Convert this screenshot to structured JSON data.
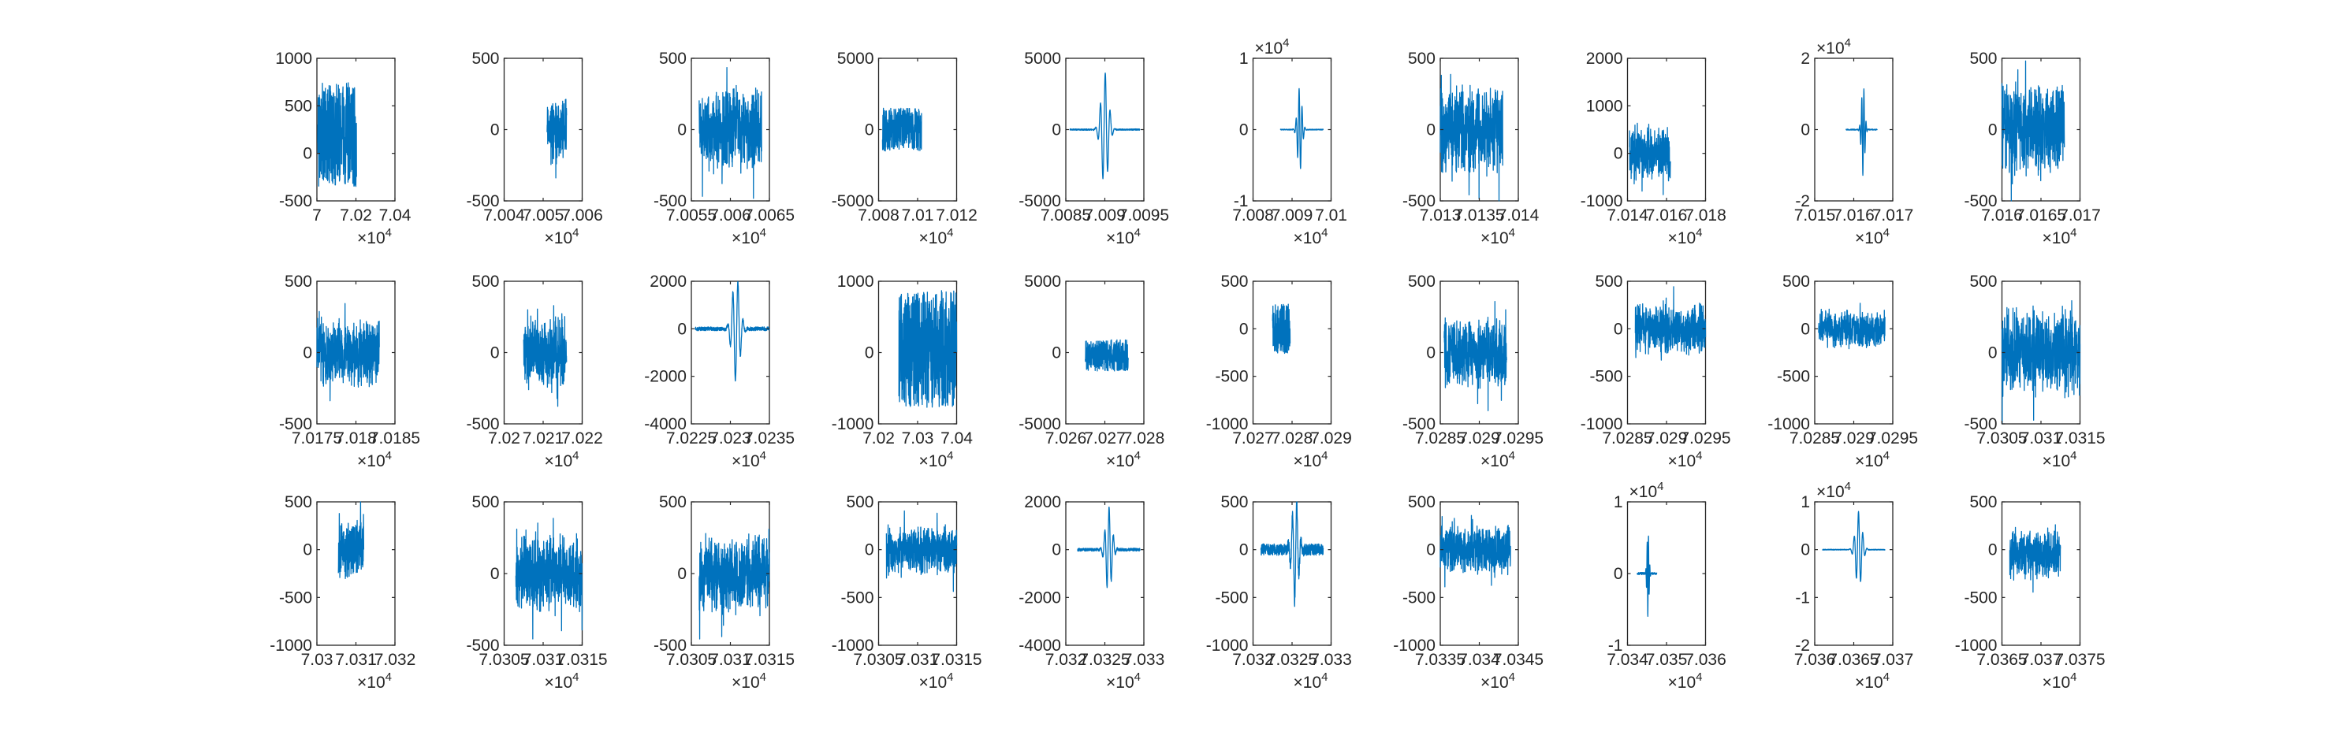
{
  "figure": {
    "series_color": "#0072BD",
    "axis_color": "#262626",
    "background": "#ffffff"
  },
  "chart_data": [
    {
      "type": "line",
      "grid": false,
      "xlim": [
        70000,
        70400
      ],
      "ylim": [
        -500,
        1000
      ],
      "xticks": [
        "7",
        "7.02",
        "7.04"
      ],
      "yticks": [
        "-500",
        "0",
        "500",
        "1000"
      ],
      "x_exponent": "4",
      "y_exponent": "",
      "signal": {
        "x_start": 70004,
        "x_end": 70203,
        "center": 200,
        "noise": 550,
        "burst": 0,
        "burst_pos": 0.5,
        "style": "block"
      }
    },
    {
      "type": "line",
      "grid": false,
      "xlim": [
        70040,
        70060
      ],
      "ylim": [
        -500,
        500
      ],
      "xticks": [
        "7.004",
        "7.005",
        "7.006"
      ],
      "yticks": [
        "-500",
        "0",
        "500"
      ],
      "x_exponent": "4",
      "y_exponent": "",
      "signal": {
        "x_start": 70051,
        "x_end": 70056,
        "center": 0,
        "noise": 160,
        "burst": 0,
        "burst_pos": 0.5,
        "style": "noise"
      }
    },
    {
      "type": "line",
      "grid": false,
      "xlim": [
        70055,
        70065
      ],
      "ylim": [
        -500,
        500
      ],
      "xticks": [
        "7.0055",
        "7.006",
        "7.0065"
      ],
      "yticks": [
        "-500",
        "0",
        "500"
      ],
      "x_exponent": "4",
      "y_exponent": "",
      "signal": {
        "x_start": 70056,
        "x_end": 70064,
        "center": 0,
        "noise": 200,
        "burst": 0,
        "burst_pos": 0.5,
        "style": "noise"
      }
    },
    {
      "type": "line",
      "grid": false,
      "xlim": [
        70080,
        70120
      ],
      "ylim": [
        -5000,
        5000
      ],
      "xticks": [
        "7.008",
        "7.01",
        "7.012"
      ],
      "yticks": [
        "-5000",
        "0",
        "5000"
      ],
      "x_exponent": "4",
      "y_exponent": "",
      "signal": {
        "x_start": 70082,
        "x_end": 70102,
        "center": 0,
        "noise": 1500,
        "burst": 0,
        "burst_pos": 0.5,
        "style": "block"
      }
    },
    {
      "type": "line",
      "grid": false,
      "xlim": [
        70085,
        70095
      ],
      "ylim": [
        -5000,
        5000
      ],
      "xticks": [
        "7.0085",
        "7.009",
        "7.0095"
      ],
      "yticks": [
        "-5000",
        "0",
        "5000"
      ],
      "x_exponent": "4",
      "y_exponent": "",
      "signal": {
        "x_start": 70085.5,
        "x_end": 70094.5,
        "center": 0,
        "noise": 50,
        "burst": 4000,
        "burst_pos": 0.5,
        "style": "wave"
      }
    },
    {
      "type": "line",
      "grid": false,
      "xlim": [
        70080,
        70100
      ],
      "ylim": [
        -10000,
        10000
      ],
      "xticks": [
        "7.008",
        "7.009",
        "7.01"
      ],
      "yticks": [
        "-1",
        "0",
        "1"
      ],
      "x_exponent": "4",
      "y_exponent": "4",
      "signal": {
        "x_start": 70087,
        "x_end": 70098,
        "center": 0,
        "noise": 60,
        "burst": 6000,
        "burst_pos": 0.45,
        "style": "wave"
      }
    },
    {
      "type": "line",
      "grid": false,
      "xlim": [
        70130,
        70140
      ],
      "ylim": [
        -500,
        500
      ],
      "xticks": [
        "7.013",
        "7.0135",
        "7.014"
      ],
      "yticks": [
        "-500",
        "0",
        "500"
      ],
      "x_exponent": "4",
      "y_exponent": "",
      "signal": {
        "x_start": 70130,
        "x_end": 70138,
        "center": 0,
        "noise": 200,
        "burst": 0,
        "burst_pos": 0.5,
        "style": "noise"
      }
    },
    {
      "type": "line",
      "grid": false,
      "xlim": [
        70140,
        70180
      ],
      "ylim": [
        -1000,
        2000
      ],
      "xticks": [
        "7.014",
        "7.016",
        "7.018"
      ],
      "yticks": [
        "-1000",
        "0",
        "1000",
        "2000"
      ],
      "x_exponent": "4",
      "y_exponent": "",
      "signal": {
        "x_start": 70141,
        "x_end": 70162,
        "center": 0,
        "noise": 400,
        "burst": 0,
        "burst_pos": 0.5,
        "style": "noise"
      }
    },
    {
      "type": "line",
      "grid": false,
      "xlim": [
        70150,
        70170
      ],
      "ylim": [
        -20000,
        20000
      ],
      "xticks": [
        "7.015",
        "7.016",
        "7.017"
      ],
      "yticks": [
        "-2",
        "0",
        "2"
      ],
      "x_exponent": "4",
      "y_exponent": "4",
      "signal": {
        "x_start": 70158,
        "x_end": 70166,
        "center": 0,
        "noise": 150,
        "burst": 13000,
        "burst_pos": 0.55,
        "style": "wave"
      }
    },
    {
      "type": "line",
      "grid": false,
      "xlim": [
        70160,
        70170
      ],
      "ylim": [
        -500,
        500
      ],
      "xticks": [
        "7.016",
        "7.0165",
        "7.017"
      ],
      "yticks": [
        "-500",
        "0",
        "500"
      ],
      "x_exponent": "4",
      "y_exponent": "",
      "signal": {
        "x_start": 70160,
        "x_end": 70168,
        "center": 0,
        "noise": 230,
        "burst": 0,
        "burst_pos": 0.5,
        "style": "noise"
      }
    },
    {
      "type": "line",
      "grid": false,
      "xlim": [
        70175,
        70185
      ],
      "ylim": [
        -500,
        500
      ],
      "xticks": [
        "7.0175",
        "7.018",
        "7.0185"
      ],
      "yticks": [
        "-500",
        "0",
        "500"
      ],
      "x_exponent": "4",
      "y_exponent": "",
      "signal": {
        "x_start": 70175,
        "x_end": 70183,
        "center": 0,
        "noise": 160,
        "burst": 0,
        "burst_pos": 0.5,
        "style": "noise"
      }
    },
    {
      "type": "line",
      "grid": false,
      "xlim": [
        70200,
        70220
      ],
      "ylim": [
        -500,
        500
      ],
      "xticks": [
        "7.02",
        "7.021",
        "7.022"
      ],
      "yticks": [
        "-500",
        "0",
        "500"
      ],
      "x_exponent": "4",
      "y_exponent": "",
      "signal": {
        "x_start": 70205,
        "x_end": 70216,
        "center": 0,
        "noise": 180,
        "burst": 0,
        "burst_pos": 0.5,
        "style": "noise"
      }
    },
    {
      "type": "line",
      "grid": false,
      "xlim": [
        70225,
        70235
      ],
      "ylim": [
        -4000,
        2000
      ],
      "xticks": [
        "7.0225",
        "7.023",
        "7.0235"
      ],
      "yticks": [
        "-4000",
        "-2000",
        "0",
        "2000"
      ],
      "x_exponent": "4",
      "y_exponent": "",
      "signal": {
        "x_start": 70225.5,
        "x_end": 70235,
        "center": 0,
        "noise": 80,
        "burst": 2200,
        "burst_pos": 0.55,
        "style": "wave"
      }
    },
    {
      "type": "line",
      "grid": false,
      "xlim": [
        70200,
        70400
      ],
      "ylim": [
        -1000,
        1000
      ],
      "xticks": [
        "7.02",
        "7.03",
        "7.04"
      ],
      "yticks": [
        "-1000",
        "0",
        "1000"
      ],
      "x_exponent": "4",
      "y_exponent": "",
      "signal": {
        "x_start": 70252,
        "x_end": 70400,
        "center": 50,
        "noise": 820,
        "burst": 0,
        "burst_pos": 0.5,
        "style": "block"
      }
    },
    {
      "type": "line",
      "grid": false,
      "xlim": [
        70260,
        70280
      ],
      "ylim": [
        -5000,
        5000
      ],
      "xticks": [
        "7.026",
        "7.027",
        "7.028"
      ],
      "yticks": [
        "-5000",
        "0",
        "5000"
      ],
      "x_exponent": "4",
      "y_exponent": "",
      "signal": {
        "x_start": 70265,
        "x_end": 70276,
        "center": -200,
        "noise": 1100,
        "burst": 0,
        "burst_pos": 0.5,
        "style": "block"
      }
    },
    {
      "type": "line",
      "grid": false,
      "xlim": [
        70270,
        70290
      ],
      "ylim": [
        -1000,
        500
      ],
      "xticks": [
        "7.027",
        "7.028",
        "7.029"
      ],
      "yticks": [
        "-1000",
        "-500",
        "0",
        "500"
      ],
      "x_exponent": "4",
      "y_exponent": "",
      "signal": {
        "x_start": 70275,
        "x_end": 70279.5,
        "center": 0,
        "noise": 260,
        "burst": 0,
        "burst_pos": 0.5,
        "style": "block"
      }
    },
    {
      "type": "line",
      "grid": false,
      "xlim": [
        70285,
        70295
      ],
      "ylim": [
        -500,
        500
      ],
      "xticks": [
        "7.0285",
        "7.029",
        "7.0295"
      ],
      "yticks": [
        "-500",
        "0",
        "500"
      ],
      "x_exponent": "4",
      "y_exponent": "",
      "signal": {
        "x_start": 70285.5,
        "x_end": 70293.5,
        "center": 0,
        "noise": 170,
        "burst": 0,
        "burst_pos": 0.5,
        "style": "noise"
      }
    },
    {
      "type": "line",
      "grid": false,
      "xlim": [
        70285,
        70295
      ],
      "ylim": [
        -1000,
        500
      ],
      "xticks": [
        "7.0285",
        "7.029",
        "7.0295"
      ],
      "yticks": [
        "-1000",
        "-500",
        "0",
        "500"
      ],
      "x_exponent": "4",
      "y_exponent": "",
      "signal": {
        "x_start": 70286,
        "x_end": 70295,
        "center": 0,
        "noise": 180,
        "burst": 0,
        "burst_pos": 0.5,
        "style": "noise"
      }
    },
    {
      "type": "line",
      "grid": false,
      "xlim": [
        70285,
        70295
      ],
      "ylim": [
        -1000,
        500
      ],
      "xticks": [
        "7.0285",
        "7.029",
        "7.0295"
      ],
      "yticks": [
        "-1000",
        "-500",
        "0",
        "500"
      ],
      "x_exponent": "4",
      "y_exponent": "",
      "signal": {
        "x_start": 70285.5,
        "x_end": 70294,
        "center": 0,
        "noise": 140,
        "burst": 0,
        "burst_pos": 0.5,
        "style": "noise"
      }
    },
    {
      "type": "line",
      "grid": false,
      "xlim": [
        70305,
        70315
      ],
      "ylim": [
        -500,
        500
      ],
      "xticks": [
        "7.0305",
        "7.031",
        "7.0315"
      ],
      "yticks": [
        "-500",
        "0",
        "500"
      ],
      "x_exponent": "4",
      "y_exponent": "",
      "signal": {
        "x_start": 70305,
        "x_end": 70315,
        "center": 0,
        "noise": 200,
        "burst": 0,
        "burst_pos": 0.5,
        "style": "noise"
      }
    },
    {
      "type": "line",
      "grid": false,
      "xlim": [
        70300,
        70320
      ],
      "ylim": [
        -1000,
        500
      ],
      "xticks": [
        "7.03",
        "7.031",
        "7.032"
      ],
      "yticks": [
        "-1000",
        "-500",
        "0",
        "500"
      ],
      "x_exponent": "4",
      "y_exponent": "",
      "signal": {
        "x_start": 70305.5,
        "x_end": 70312,
        "center": 0,
        "noise": 200,
        "burst": 0,
        "burst_pos": 0.5,
        "style": "noise"
      }
    },
    {
      "type": "line",
      "grid": false,
      "xlim": [
        70305,
        70315
      ],
      "ylim": [
        -500,
        500
      ],
      "xticks": [
        "7.0305",
        "7.031",
        "7.0315"
      ],
      "yticks": [
        "-500",
        "0",
        "500"
      ],
      "x_exponent": "4",
      "y_exponent": "",
      "signal": {
        "x_start": 70306.5,
        "x_end": 70315,
        "center": 0,
        "noise": 180,
        "burst": 0,
        "burst_pos": 0.5,
        "style": "noise"
      }
    },
    {
      "type": "line",
      "grid": false,
      "xlim": [
        70305,
        70315
      ],
      "ylim": [
        -500,
        500
      ],
      "xticks": [
        "7.0305",
        "7.031",
        "7.0315"
      ],
      "yticks": [
        "-500",
        "0",
        "500"
      ],
      "x_exponent": "4",
      "y_exponent": "",
      "signal": {
        "x_start": 70306,
        "x_end": 70315,
        "center": 0,
        "noise": 190,
        "burst": 0,
        "burst_pos": 0.5,
        "style": "noise"
      }
    },
    {
      "type": "line",
      "grid": false,
      "xlim": [
        70305,
        70315
      ],
      "ylim": [
        -1000,
        500
      ],
      "xticks": [
        "7.0305",
        "7.031",
        "7.0315"
      ],
      "yticks": [
        "-1000",
        "-500",
        "0",
        "500"
      ],
      "x_exponent": "4",
      "y_exponent": "",
      "signal": {
        "x_start": 70306,
        "x_end": 70315,
        "center": 0,
        "noise": 170,
        "burst": 0,
        "burst_pos": 0.5,
        "style": "noise"
      }
    },
    {
      "type": "line",
      "grid": false,
      "xlim": [
        70320,
        70330
      ],
      "ylim": [
        -4000,
        2000
      ],
      "xticks": [
        "7.032",
        "7.0325",
        "7.033"
      ],
      "yticks": [
        "-4000",
        "-2000",
        "0",
        "2000"
      ],
      "x_exponent": "4",
      "y_exponent": "",
      "signal": {
        "x_start": 70321.5,
        "x_end": 70329.5,
        "center": 0,
        "noise": 60,
        "burst": 1800,
        "burst_pos": 0.5,
        "style": "wave"
      }
    },
    {
      "type": "line",
      "grid": false,
      "xlim": [
        70320,
        70330
      ],
      "ylim": [
        -1000,
        500
      ],
      "xticks": [
        "7.032",
        "7.0325",
        "7.033"
      ],
      "yticks": [
        "-1000",
        "-500",
        "0",
        "500"
      ],
      "x_exponent": "4",
      "y_exponent": "",
      "signal": {
        "x_start": 70321,
        "x_end": 70329,
        "center": 0,
        "noise": 60,
        "burst": 560,
        "burst_pos": 0.55,
        "style": "wave"
      }
    },
    {
      "type": "line",
      "grid": false,
      "xlim": [
        70335,
        70345
      ],
      "ylim": [
        -1000,
        500
      ],
      "xticks": [
        "7.0335",
        "7.034",
        "7.0345"
      ],
      "yticks": [
        "-1000",
        "-500",
        "0",
        "500"
      ],
      "x_exponent": "4",
      "y_exponent": "",
      "signal": {
        "x_start": 70335,
        "x_end": 70344,
        "center": 0,
        "noise": 170,
        "burst": 0,
        "burst_pos": 0.5,
        "style": "noise"
      }
    },
    {
      "type": "line",
      "grid": false,
      "xlim": [
        70340,
        70360
      ],
      "ylim": [
        -10000,
        10000
      ],
      "xticks": [
        "7.034",
        "7.035",
        "7.036"
      ],
      "yticks": [
        "-1",
        "0",
        "1"
      ],
      "x_exponent": "4",
      "y_exponent": "4",
      "signal": {
        "x_start": 70342.5,
        "x_end": 70347.5,
        "center": 0,
        "noise": 150,
        "burst": 6200,
        "burst_pos": 0.55,
        "style": "wave"
      }
    },
    {
      "type": "line",
      "grid": false,
      "xlim": [
        70360,
        70370
      ],
      "ylim": [
        -20000,
        10000
      ],
      "xticks": [
        "7.036",
        "7.0365",
        "7.037"
      ],
      "yticks": [
        "-2",
        "-1",
        "0",
        "1"
      ],
      "x_exponent": "4",
      "y_exponent": "4",
      "signal": {
        "x_start": 70361,
        "x_end": 70369,
        "center": 0,
        "noise": 80,
        "burst": 8000,
        "burst_pos": 0.58,
        "style": "wave"
      }
    },
    {
      "type": "line",
      "grid": false,
      "xlim": [
        70365,
        70375
      ],
      "ylim": [
        -1000,
        500
      ],
      "xticks": [
        "7.0365",
        "7.037",
        "7.0375"
      ],
      "yticks": [
        "-1000",
        "-500",
        "0",
        "500"
      ],
      "x_exponent": "4",
      "y_exponent": "",
      "signal": {
        "x_start": 70366,
        "x_end": 70372.5,
        "center": -50,
        "noise": 180,
        "burst": 0,
        "burst_pos": 0.5,
        "style": "noise"
      }
    }
  ]
}
